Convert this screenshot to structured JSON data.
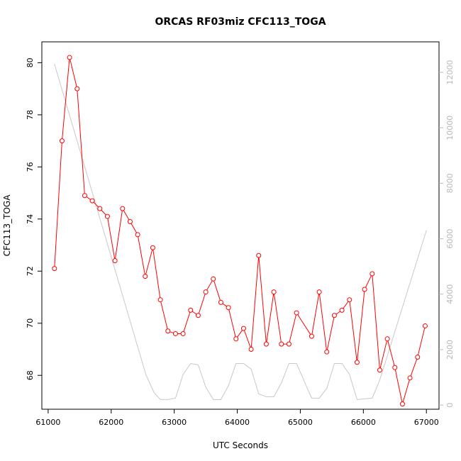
{
  "chart_data": {
    "type": "line",
    "title": "ORCAS RF03miz CFC113_TOGA",
    "xlabel": "UTC Seconds",
    "ylabel": "CFC113_TOGA",
    "xlim": [
      60900,
      67200
    ],
    "ylim": [
      66.7,
      80.8
    ],
    "y2lim": [
      -150,
      13100
    ],
    "x_ticks": [
      61000,
      62000,
      63000,
      64000,
      65000,
      66000,
      67000
    ],
    "y_ticks": [
      68,
      70,
      72,
      74,
      76,
      78,
      80
    ],
    "y2_ticks": [
      0,
      2000,
      4000,
      6000,
      8000,
      10000,
      12000
    ],
    "series": [
      {
        "axis": "left",
        "color": "#ff0000",
        "marker": "open-circle",
        "x": [
          61100,
          61220,
          61340,
          61460,
          61580,
          61700,
          61820,
          61940,
          62060,
          62180,
          62300,
          62420,
          62540,
          62660,
          62780,
          62900,
          63020,
          63140,
          63260,
          63380,
          63500,
          63620,
          63740,
          63860,
          63980,
          64100,
          64220,
          64340,
          64460,
          64580,
          64700,
          64820,
          64940,
          65180,
          65300,
          65420,
          65540,
          65660,
          65780,
          65900,
          66020,
          66140,
          66260,
          66380,
          66500,
          66620,
          66740,
          66860,
          66980
        ],
        "y": [
          72.1,
          77.0,
          80.2,
          79.0,
          74.9,
          74.7,
          74.4,
          74.1,
          72.4,
          74.4,
          73.9,
          73.4,
          71.8,
          72.9,
          70.9,
          69.7,
          69.6,
          69.6,
          70.5,
          70.3,
          71.2,
          71.7,
          70.8,
          70.6,
          69.4,
          69.8,
          69.0,
          72.6,
          69.2,
          71.2,
          69.2,
          69.2,
          70.4,
          69.5,
          71.2,
          68.9,
          70.3,
          70.5,
          70.9,
          68.5,
          71.3,
          71.9,
          68.2,
          69.4,
          68.3,
          66.9,
          67.9,
          68.7,
          69.9
        ]
      },
      {
        "axis": "right",
        "color": "#c8c8c8",
        "marker": "none",
        "x": [
          61100,
          62550,
          62680,
          62780,
          62900,
          63020,
          63140,
          63260,
          63380,
          63500,
          63620,
          63740,
          63860,
          63980,
          64100,
          64220,
          64340,
          64460,
          64580,
          64700,
          64820,
          64940,
          65180,
          65300,
          65420,
          65540,
          65660,
          65780,
          65900,
          66140,
          66260,
          67000
        ],
        "y": [
          12300,
          1100,
          450,
          200,
          200,
          250,
          1100,
          1500,
          1450,
          650,
          200,
          200,
          700,
          1500,
          1500,
          1300,
          400,
          300,
          300,
          800,
          1500,
          1500,
          250,
          250,
          600,
          1500,
          1500,
          1100,
          200,
          250,
          900,
          6300
        ]
      }
    ]
  }
}
